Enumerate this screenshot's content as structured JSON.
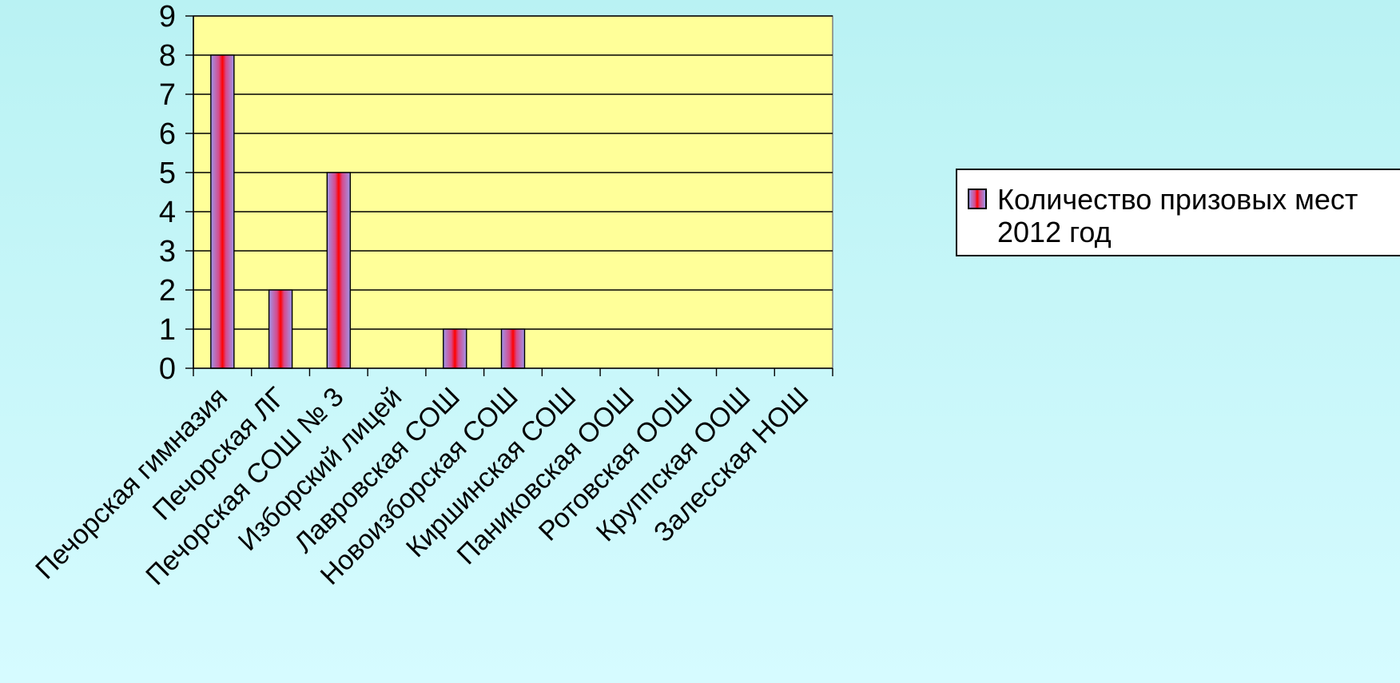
{
  "chart_data": {
    "type": "bar",
    "categories": [
      "Печорская гимназия",
      "Печорская ЛГ",
      "Печорская СОШ № 3",
      "Изборский лицей",
      "Лавровская СОШ",
      "Новоизборская СОШ",
      "Киршинская СОШ",
      "Паниковская ООШ",
      "Ротовская ООШ",
      "Круппская ООШ",
      "Залесская НОШ"
    ],
    "series": [
      {
        "name": "Количество призовых мест\n2012 год",
        "values": [
          8,
          2,
          5,
          0,
          1,
          1,
          0,
          0,
          0,
          0,
          0
        ]
      }
    ],
    "ylim": [
      0,
      9
    ],
    "yticks": [
      "0",
      "1",
      "2",
      "3",
      "4",
      "5",
      "6",
      "7",
      "8",
      "9"
    ],
    "grid": true,
    "legend_position": "right",
    "colors": {
      "plot_background": "#ffff99",
      "bar_edge": "#a095e8",
      "bar_center": "#ff0000",
      "gridline": "#000000",
      "page_background": "#c4f6f8"
    }
  }
}
